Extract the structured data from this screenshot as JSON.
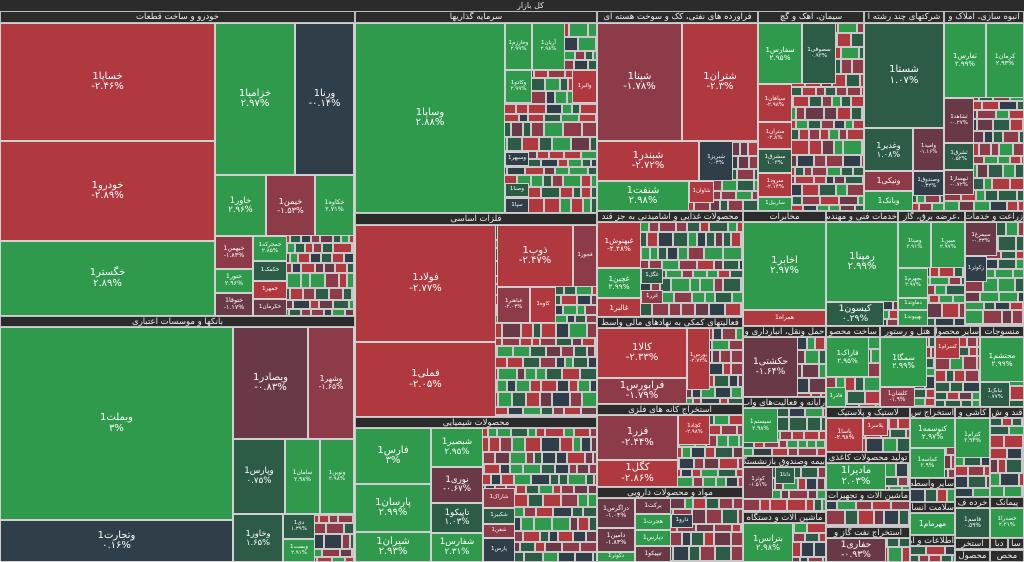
{
  "title": "کل بازار",
  "palette": {
    "g": "#2f9a4c",
    "dg": "#2c5c46",
    "n": "#2f3e48",
    "m": "#6a3947",
    "mr": "#8e3b49",
    "r": "#b0393f",
    "lg": "#37b85a"
  },
  "sectors": [
    {
      "title": "خودرو و ساخت قطعات",
      "tiles": [
        {
          "name": "خساپا1",
          "change": "-۲.۴۶%",
          "tone": "r"
        },
        {
          "name": "خودرو1",
          "change": "-۲.۸۹%",
          "tone": "r"
        },
        {
          "name": "خگستر1",
          "change": "۲.۸۹%",
          "tone": "g"
        },
        {
          "name": "خزامیا1",
          "change": "۲.۹۷%",
          "tone": "g"
        },
        {
          "name": "ورنا1",
          "change": "-۰.۱۴%",
          "tone": "n"
        },
        {
          "name": "خاور1",
          "change": "۲.۹۶%",
          "tone": "g"
        },
        {
          "name": "خیمن1",
          "change": "-۱.۵۳%",
          "tone": "mr"
        },
        {
          "name": "خکاوه1",
          "change": "۲.۷۱%",
          "tone": "g"
        },
        {
          "name": "خبهمن1",
          "change": "-۱.۸۳%",
          "tone": "mr"
        },
        {
          "name": "خمحرکه1",
          "change": "۲.۸۵%",
          "tone": "g"
        },
        {
          "name": "خکمک1",
          "change": "",
          "tone": "dg"
        },
        {
          "name": "خمهر1",
          "change": "",
          "tone": "r"
        },
        {
          "name": "ختور1",
          "change": "۲.۹۶%",
          "tone": "g"
        },
        {
          "name": "ختوقا1",
          "change": "-۱.۱۷%",
          "tone": "m"
        },
        {
          "name": "خکرمان1",
          "change": "",
          "tone": "m"
        }
      ]
    },
    {
      "title": "سرمایه گذاریها",
      "tiles": [
        {
          "name": "وساپا1",
          "change": "۲.۸۸%",
          "tone": "g"
        },
        {
          "name": "وخارزم1",
          "change": "۲.۹۹%",
          "tone": "g"
        },
        {
          "name": "آریان1",
          "change": "۲.۹۸%",
          "tone": "g"
        },
        {
          "name": "وکادو1",
          "change": "۲.۹۹%",
          "tone": "g"
        },
        {
          "name": "والبر1",
          "change": "",
          "tone": "r"
        },
        {
          "name": "وسپهر1",
          "change": "",
          "tone": "n"
        },
        {
          "name": "وصنا1",
          "change": "",
          "tone": "dg"
        },
        {
          "name": "سپا1",
          "change": "",
          "tone": "n"
        }
      ]
    },
    {
      "title": "فراورده های نفتی، کک و سوخت هسته ای",
      "tiles": [
        {
          "name": "شپنا1",
          "change": "-۱.۷۸%",
          "tone": "mr"
        },
        {
          "name": "شتران1",
          "change": "-۲.۳%",
          "tone": "r"
        },
        {
          "name": "شبندر1",
          "change": "-۲.۷۲%",
          "tone": "r"
        },
        {
          "name": "شبریز1",
          "change": "۰.۰۴%",
          "tone": "n"
        },
        {
          "name": "شنفت1",
          "change": "۲.۹۸%",
          "tone": "g"
        },
        {
          "name": "شاوان1",
          "change": "",
          "tone": "r"
        }
      ]
    },
    {
      "title": "سیمان، آهک و گچ",
      "tiles": [
        {
          "name": "سفارس1",
          "change": "۲.۹۵%",
          "tone": "g"
        },
        {
          "name": "سصوفی1",
          "change": "۰.۹۳%",
          "tone": "dg"
        },
        {
          "name": "سپاهان1",
          "change": "-۲.۹۸%",
          "tone": "r"
        },
        {
          "name": "ستران1",
          "change": "-۲.۸%",
          "tone": "r"
        },
        {
          "name": "سشرق1",
          "change": "۱.۰۳%",
          "tone": "dg"
        },
        {
          "name": "سرود1",
          "change": "-۲.۱۴%",
          "tone": "r"
        },
        {
          "name": "ساربیل1",
          "change": "",
          "tone": "g"
        }
      ]
    },
    {
      "title": "شرکتهای چند رشته ا",
      "tiles": [
        {
          "name": "شستا1",
          "change": "۱.۰۷%",
          "tone": "dg"
        },
        {
          "name": "وغدیر1",
          "change": "۱.۰۸%",
          "tone": "dg"
        },
        {
          "name": "وامید1",
          "change": "-۱.۱۶%",
          "tone": "m"
        },
        {
          "name": "ونیکی1",
          "change": "",
          "tone": "mr"
        },
        {
          "name": "وصندوق1",
          "change": "۰.۳۲%",
          "tone": "n"
        },
        {
          "name": "وبانک1",
          "change": "",
          "tone": "g"
        }
      ]
    },
    {
      "title": "انبوه سازی، املاک و",
      "tiles": [
        {
          "name": "ثفارس1",
          "change": "۲.۹۹%",
          "tone": "g"
        },
        {
          "name": "کرمان1",
          "change": "۲.۹۳%",
          "tone": "g"
        },
        {
          "name": "ثشاهد1",
          "change": "-۰.۲۷%",
          "tone": "m"
        },
        {
          "name": "ثشرق1",
          "change": "۰.۵۲%",
          "tone": "dg"
        },
        {
          "name": "ثبهساز1",
          "change": "-۰.۷۲%",
          "tone": "m"
        }
      ]
    },
    {
      "title": "فلزات اساسی",
      "tiles": [
        {
          "name": "فولاد1",
          "change": "-۲.۷۷%",
          "tone": "r"
        },
        {
          "name": "فملی1",
          "change": "-۲.۰۵%",
          "tone": "r"
        },
        {
          "name": "ذوب1",
          "change": "-۲.۴۷%",
          "tone": "r"
        },
        {
          "name": "فجوز1",
          "change": "",
          "tone": "mr"
        },
        {
          "name": "فباهنر1",
          "change": "-۲.۰۳%",
          "tone": "mr"
        },
        {
          "name": "کاوه1",
          "change": "",
          "tone": "r"
        }
      ]
    },
    {
      "title": "محصولات شیمیایی",
      "tiles": [
        {
          "name": "فارس1",
          "change": "۳%",
          "tone": "g"
        },
        {
          "name": "پارسان1",
          "change": "۲.۹۹%",
          "tone": "g"
        },
        {
          "name": "شیران1",
          "change": "۲.۹۳%",
          "tone": "g"
        },
        {
          "name": "شبصیر1",
          "change": "۲.۹۵%",
          "tone": "g"
        },
        {
          "name": "نوری1",
          "change": "-۰.۶۷%",
          "tone": "m"
        },
        {
          "name": "تاپیکو1",
          "change": "۱.۰۳%",
          "tone": "dg"
        },
        {
          "name": "شفارس1",
          "change": "۲.۳۱%",
          "tone": "g"
        },
        {
          "name": "شاراک1",
          "change": "",
          "tone": "mr"
        },
        {
          "name": "شکبیر1",
          "change": "",
          "tone": "dg"
        },
        {
          "name": "شفن1",
          "change": "",
          "tone": "mr"
        },
        {
          "name": "پارس1",
          "change": "",
          "tone": "n"
        }
      ]
    },
    {
      "title": "بانکها و موسسات اعتباری",
      "tiles": [
        {
          "name": "وبملت1",
          "change": "۳%",
          "tone": "g"
        },
        {
          "name": "وتجارت1",
          "change": "۰.۱۶%",
          "tone": "n"
        },
        {
          "name": "وبصادر1",
          "change": "-۰.۸۳%",
          "tone": "m"
        },
        {
          "name": "وشهر1",
          "change": "-۱.۶۵%",
          "tone": "mr"
        },
        {
          "name": "وپارس1",
          "change": "۰.۷۵%",
          "tone": "dg"
        },
        {
          "name": "سامان1",
          "change": "۲.۹۸%",
          "tone": "g"
        },
        {
          "name": "ونوین1",
          "change": "۲.۹۸%",
          "tone": "g"
        },
        {
          "name": "وخاور1",
          "change": "۱.۶۵%",
          "tone": "dg"
        },
        {
          "name": "دی1",
          "change": "۱.۳۹%",
          "tone": "dg"
        },
        {
          "name": "وبست1",
          "change": "۲.۹۱%",
          "tone": "g"
        }
      ]
    },
    {
      "title": "محصولات غذایی و آشامیدنی به جز قند",
      "tiles": [
        {
          "name": "غبهنوش1",
          "change": "-۲.۴۸%",
          "tone": "r"
        },
        {
          "name": "غچین1",
          "change": "۲.۹۹%",
          "tone": "g"
        },
        {
          "name": "غالبر1",
          "change": "",
          "tone": "r"
        },
        {
          "name": "غگل1",
          "change": "",
          "tone": "dg"
        },
        {
          "name": "غزر1",
          "change": "",
          "tone": "mr"
        }
      ]
    },
    {
      "title": "فعالیتهای کمکی به نهادهای مالی واسط",
      "tiles": [
        {
          "name": "کالا1",
          "change": "-۲.۳۳%",
          "tone": "r"
        },
        {
          "name": "فرابورس1",
          "change": "-۱.۷۹%",
          "tone": "mr"
        },
        {
          "name": "بورس1",
          "change": "-۲.۷۲%",
          "tone": "r"
        }
      ]
    },
    {
      "title": "استخراج کانه های فلزی",
      "tiles": [
        {
          "name": "فزر1",
          "change": "-۲.۴۴%",
          "tone": "mr"
        },
        {
          "name": "کچاد1",
          "change": "-۲.۹۸%",
          "tone": "r"
        },
        {
          "name": "کگل1",
          "change": "-۲.۸۶%",
          "tone": "r"
        }
      ]
    },
    {
      "title": "مواد و محصولات دارویی",
      "tiles": [
        {
          "name": "دزاگرس1",
          "change": "-۱.۰۴%",
          "tone": "m"
        },
        {
          "name": "دامین1",
          "change": "-۱.۸۳%",
          "tone": "m"
        },
        {
          "name": "برکت1",
          "change": "",
          "tone": "m"
        },
        {
          "name": "هجرت1",
          "change": "",
          "tone": "g"
        },
        {
          "name": "دپارس1",
          "change": "",
          "tone": "g"
        },
        {
          "name": "دکوثر1",
          "change": "",
          "tone": "g"
        },
        {
          "name": "تیپیکو1",
          "change": "",
          "tone": "m"
        },
        {
          "name": "دارو1",
          "change": "",
          "tone": "n"
        }
      ]
    },
    {
      "title": "مخابرات",
      "tiles": [
        {
          "name": "اخابر1",
          "change": "۲.۹۷%",
          "tone": "g"
        },
        {
          "name": "همراه1",
          "change": "",
          "tone": "r"
        }
      ]
    },
    {
      "title": "خدمات فنی و مهندسی",
      "tiles": [
        {
          "name": "رمپنا1",
          "change": "۲.۹۹%",
          "tone": "g"
        },
        {
          "name": "کیسون1",
          "change": "۰.۲۹%",
          "tone": "dg"
        }
      ]
    },
    {
      "title": "،عرضه برق، گاز",
      "tiles": [
        {
          "name": "ومپنا1",
          "change": "۲.۹۱%",
          "tone": "g"
        },
        {
          "name": "مبین1",
          "change": "۲.۹۷%",
          "tone": "g"
        },
        {
          "name": "بجهرم1",
          "change": "۲.۹۷%",
          "tone": "g"
        },
        {
          "name": "دماوند1",
          "change": "",
          "tone": "g"
        },
        {
          "name": "بهپیوند1",
          "change": "",
          "tone": "g"
        }
      ]
    },
    {
      "title": "زراعت و خدمات",
      "tiles": [
        {
          "name": "سیمرغ1",
          "change": "-۰.۳۳%",
          "tone": "m"
        },
        {
          "name": "زکوثر1",
          "change": "",
          "tone": "n"
        }
      ]
    },
    {
      "title": "حمل ونقل، انبارداری و",
      "tiles": [
        {
          "name": "حکشتی1",
          "change": "-۱.۶۴%",
          "tone": "m"
        }
      ]
    },
    {
      "title": "رایانه و فعالیت‌های واب",
      "tiles": [
        {
          "name": "سیستم1",
          "change": "۲.۹۸%",
          "tone": "g"
        }
      ]
    },
    {
      "title": "بیمه وصندوق بازنشستگ",
      "tiles": [
        {
          "name": "کوثر1",
          "change": "-۱.۵۱%",
          "tone": "m"
        },
        {
          "name": "دانا1",
          "change": "",
          "tone": "dg"
        }
      ]
    },
    {
      "title": "ماشین آلات و دستگاه",
      "tiles": [
        {
          "name": "بترانس1",
          "change": "۲.۹۸%",
          "tone": "g"
        }
      ]
    },
    {
      "title": "ساخت محصو",
      "tiles": [
        {
          "name": "فاراک1",
          "change": "۲.۹۵%",
          "tone": "g"
        },
        {
          "name": "فاذر1",
          "change": "",
          "tone": "g"
        }
      ]
    },
    {
      "title": "هتل و رستور",
      "tiles": [
        {
          "name": "سمگا1",
          "change": "۲.۹۹%",
          "tone": "g"
        },
        {
          "name": "کلشان1",
          "change": "-۱.۹%",
          "tone": "mr"
        }
      ]
    },
    {
      "title": "سایر محصول",
      "tiles": [
        {
          "name": "کسرام1",
          "change": "",
          "tone": "r"
        }
      ]
    },
    {
      "title": "منسوجات",
      "tiles": [
        {
          "name": "محتشم1",
          "change": "۲.۹۹%",
          "tone": "g"
        },
        {
          "name": "نبابک1",
          "change": "۰.۷۷%",
          "tone": "dg"
        }
      ]
    },
    {
      "title": "لاستیک و پلاستیک",
      "tiles": [
        {
          "name": "پاسا1",
          "change": "-۲.۹۸%",
          "tone": "r"
        },
        {
          "name": "پلاسر1",
          "change": "",
          "tone": "r"
        }
      ]
    },
    {
      "title": "تولید محصولات کاغذی",
      "tiles": [
        {
          "name": "مادیرا1",
          "change": "۲.۰۳%",
          "tone": "g"
        }
      ]
    },
    {
      "title": "ماشین آلات و تجهیزات",
      "tiles": []
    },
    {
      "title": "استخراج نفت گاز و",
      "tiles": [
        {
          "name": "حفاری1",
          "change": "-۰.۹۳%",
          "tone": "m"
        }
      ]
    },
    {
      "title": "استخراج س",
      "tiles": [
        {
          "name": "کتوسمه1",
          "change": "۲.۹۷%",
          "tone": "g"
        },
        {
          "name": "کماسه1",
          "change": "۲.۹%",
          "tone": "g"
        }
      ]
    },
    {
      "title": "کاشی و",
      "tiles": [
        {
          "name": "کترام1",
          "change": "۲.۹۳%",
          "tone": "g"
        }
      ]
    },
    {
      "title": "قند و ش",
      "tiles": []
    },
    {
      "title": "سایر واسطه گ",
      "tiles": []
    },
    {
      "title": "سلامت انسان",
      "tiles": [
        {
          "name": "مهرمام1",
          "change": "",
          "tone": "g"
        }
      ]
    },
    {
      "title": "اطلاعات و ارت",
      "tiles": []
    },
    {
      "title": "خرده ف",
      "tiles": [
        {
          "name": "قاسم1",
          "change": "۰.۵۹%",
          "tone": "dg"
        }
      ]
    },
    {
      "title": "پیمانک",
      "tiles": [
        {
          "name": "خصدرا1",
          "change": "۲.۲۱%",
          "tone": "g"
        }
      ]
    },
    {
      "title": "استخر",
      "tiles": []
    },
    {
      "title": "دبا",
      "tiles": []
    },
    {
      "title": "سا",
      "tiles": []
    },
    {
      "title": "محصول",
      "tiles": []
    },
    {
      "title": "محص",
      "tiles": []
    }
  ]
}
